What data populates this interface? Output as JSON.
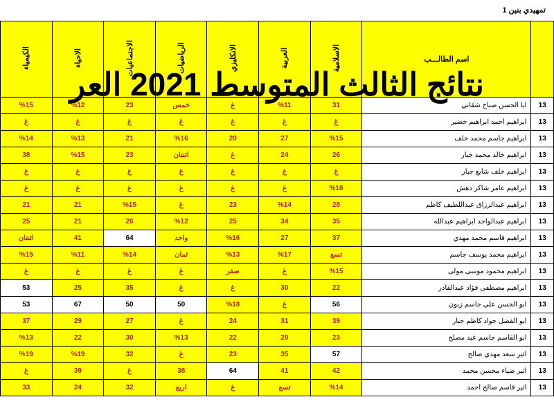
{
  "page_label": "تمهيدي بنين 1",
  "overlay_title": "نتائج الثالث المتوسط 2021 العر",
  "columns": {
    "seq": "",
    "name": "اسم الطالـــب",
    "subjects": [
      "الاسلامية",
      "العربية",
      "الانكليزي",
      "الرياضيات",
      "الاجتماعيات",
      "الاحياء",
      "الكيمياء"
    ]
  },
  "rows": [
    {
      "seq": "13",
      "name": "ابا الحسن صباح شقاني",
      "vals": [
        {
          "t": "31"
        },
        {
          "t": "%11"
        },
        {
          "t": "غ"
        },
        {
          "t": "خمس"
        },
        {
          "t": "23"
        },
        {
          "t": "%12"
        },
        {
          "t": "%15"
        }
      ]
    },
    {
      "seq": "13",
      "name": "ابراهيم احمد ابراهيم خضير",
      "vals": [
        {
          "t": "غ"
        },
        {
          "t": "غ"
        },
        {
          "t": "غ"
        },
        {
          "t": "غ"
        },
        {
          "t": "غ"
        },
        {
          "t": "غ"
        },
        {
          "t": "غ"
        }
      ]
    },
    {
      "seq": "13",
      "name": "ابراهيم جاسم محمد خلف",
      "vals": [
        {
          "t": "%15"
        },
        {
          "t": "27"
        },
        {
          "t": "20"
        },
        {
          "t": "%16"
        },
        {
          "t": "21"
        },
        {
          "t": "%13"
        },
        {
          "t": "%14"
        }
      ]
    },
    {
      "seq": "13",
      "name": "ابراهيم خالد محمد جبار",
      "vals": [
        {
          "t": "26"
        },
        {
          "t": "24"
        },
        {
          "t": "غ"
        },
        {
          "t": "اثنتان"
        },
        {
          "t": "23"
        },
        {
          "t": "%15"
        },
        {
          "t": "38"
        }
      ]
    },
    {
      "seq": "13",
      "name": "ابراهيم خلف شايع جبار",
      "vals": [
        {
          "t": "غ"
        },
        {
          "t": "غ"
        },
        {
          "t": "غ"
        },
        {
          "t": "غ"
        },
        {
          "t": "غ"
        },
        {
          "t": "غ"
        },
        {
          "t": "غ"
        }
      ]
    },
    {
      "seq": "13",
      "name": "ابراهيم عامر شاكر دهش",
      "vals": [
        {
          "t": "%16"
        },
        {
          "t": "غ"
        },
        {
          "t": "غ"
        },
        {
          "t": "غ"
        },
        {
          "t": "غ"
        },
        {
          "t": "غ"
        },
        {
          "t": "غ"
        }
      ]
    },
    {
      "seq": "13",
      "name": "ابراهيم عبدالرزاق عبداللطيف كاظم",
      "vals": [
        {
          "t": "28"
        },
        {
          "t": "%14"
        },
        {
          "t": "23"
        },
        {
          "t": "غ"
        },
        {
          "t": "%15"
        },
        {
          "t": "21"
        },
        {
          "t": "21"
        }
      ]
    },
    {
      "seq": "13",
      "name": "ابراهيم عبدالواحد ابراهيم عبدالله",
      "vals": [
        {
          "t": "35"
        },
        {
          "t": "34"
        },
        {
          "t": "25"
        },
        {
          "t": "%12"
        },
        {
          "t": "26"
        },
        {
          "t": "21"
        },
        {
          "t": "25"
        }
      ]
    },
    {
      "seq": "13",
      "name": "ابراهيم قاسم  محمد مهدي",
      "vals": [
        {
          "t": "37"
        },
        {
          "t": "27"
        },
        {
          "t": "%16"
        },
        {
          "t": "واحد"
        },
        {
          "t": "64",
          "w": true
        },
        {
          "t": "41"
        },
        {
          "t": "اثنتان"
        }
      ]
    },
    {
      "seq": "13",
      "name": "ابراهيم محمد يوسف جاسم",
      "vals": [
        {
          "t": "تسع"
        },
        {
          "t": "%17"
        },
        {
          "t": "%13"
        },
        {
          "t": "ثمان"
        },
        {
          "t": "%14"
        },
        {
          "t": "%11"
        },
        {
          "t": "%15"
        }
      ]
    },
    {
      "seq": "13",
      "name": "ابراهيم محمود موسى مولى",
      "vals": [
        {
          "t": "%15"
        },
        {
          "t": "غ"
        },
        {
          "t": "صفر"
        },
        {
          "t": "غ"
        },
        {
          "t": "غ"
        },
        {
          "t": "غ"
        },
        {
          "t": "غ"
        }
      ]
    },
    {
      "seq": "13",
      "name": "ابراهيم مصطفى فؤاد عبدالقادر",
      "vals": [
        {
          "t": "22"
        },
        {
          "t": "30"
        },
        {
          "t": "غ"
        },
        {
          "t": "غ"
        },
        {
          "t": "35"
        },
        {
          "t": "25"
        },
        {
          "t": "53",
          "w": true
        }
      ]
    },
    {
      "seq": "13",
      "name": "ابو الحسن علي جاسم زبون",
      "vals": [
        {
          "t": "56",
          "w": true
        },
        {
          "t": "غ"
        },
        {
          "t": "%18"
        },
        {
          "t": "50",
          "w": true
        },
        {
          "t": "50",
          "w": true
        },
        {
          "t": "67",
          "w": true
        },
        {
          "t": "53",
          "w": true
        }
      ]
    },
    {
      "seq": "13",
      "name": "ابو الفضل جواد كاظم جبار",
      "vals": [
        {
          "t": "39"
        },
        {
          "t": "31"
        },
        {
          "t": "24"
        },
        {
          "t": "غ"
        },
        {
          "t": "27"
        },
        {
          "t": "29"
        },
        {
          "t": "37"
        }
      ]
    },
    {
      "seq": "13",
      "name": "ابو القاسم جاسم عبد مصلح",
      "vals": [
        {
          "t": "23"
        },
        {
          "t": "20"
        },
        {
          "t": "22"
        },
        {
          "t": "%13"
        },
        {
          "t": "30"
        },
        {
          "t": "22"
        },
        {
          "t": "%13"
        }
      ]
    },
    {
      "seq": "13",
      "name": "اثير سعد مهدي صالح",
      "vals": [
        {
          "t": "57",
          "w": true
        },
        {
          "t": "35"
        },
        {
          "t": "23"
        },
        {
          "t": "غ"
        },
        {
          "t": "32"
        },
        {
          "t": "%19"
        },
        {
          "t": "%19"
        }
      ]
    },
    {
      "seq": "13",
      "name": "اثير ضياء محسن محمد",
      "vals": [
        {
          "t": "42"
        },
        {
          "t": "41"
        },
        {
          "t": "64",
          "w": true
        },
        {
          "t": "38"
        },
        {
          "t": "غ"
        },
        {
          "t": "39"
        },
        {
          "t": "غ"
        }
      ]
    },
    {
      "seq": "13",
      "name": "اثير قاسم صالح احمد",
      "vals": [
        {
          "t": "%14"
        },
        {
          "t": "تسع"
        },
        {
          "t": "غ"
        },
        {
          "t": "اربع"
        },
        {
          "t": "32"
        },
        {
          "t": "24"
        },
        {
          "t": "33"
        }
      ]
    }
  ]
}
